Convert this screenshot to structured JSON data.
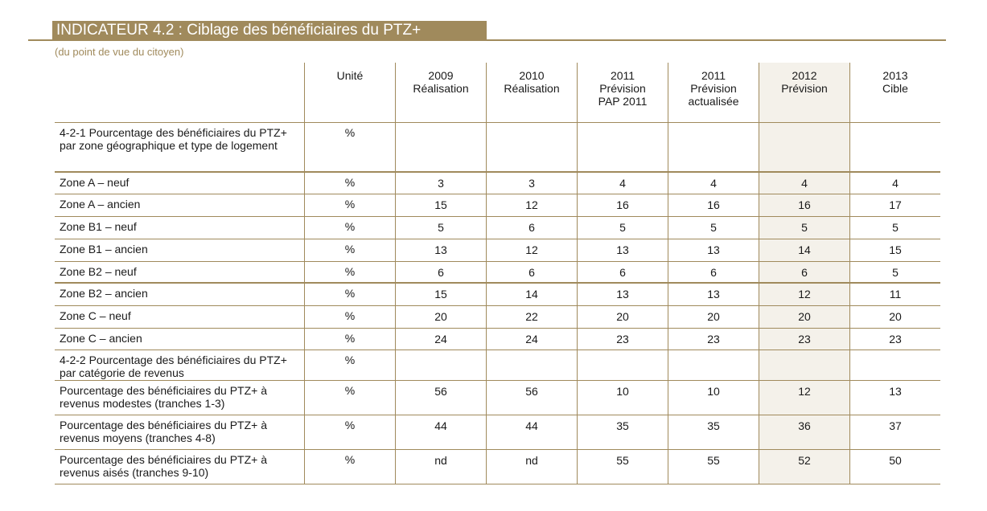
{
  "header": {
    "title": "INDICATEUR 4.2 : Ciblage des bénéficiaires du PTZ+",
    "subtitle": "(du point de vue du citoyen)"
  },
  "table": {
    "columns": [
      "",
      "Unité",
      "2009\nRéalisation",
      "2010\nRéalisation",
      "2011\nPrévision\nPAP 2011",
      "2011\nPrévision\nactualisée",
      "2012\nPrévision",
      "2013\nCible"
    ],
    "rows": [
      {
        "label": "4-2-1 Pourcentage des bénéficiaires du PTZ+ par zone géographique et type de logement",
        "unit": "%",
        "values": [
          "",
          "",
          "",
          "",
          "",
          ""
        ],
        "section": true
      },
      {
        "label": "Zone A – neuf",
        "unit": "%",
        "values": [
          "3",
          "3",
          "4",
          "4",
          "4",
          "4"
        ]
      },
      {
        "label": "Zone A – ancien",
        "unit": "%",
        "values": [
          "15",
          "12",
          "16",
          "16",
          "16",
          "17"
        ]
      },
      {
        "label": "Zone B1 – neuf",
        "unit": "%",
        "values": [
          "5",
          "6",
          "5",
          "5",
          "5",
          "5"
        ]
      },
      {
        "label": "Zone B1 – ancien",
        "unit": "%",
        "values": [
          "13",
          "12",
          "13",
          "13",
          "14",
          "15"
        ]
      },
      {
        "label": "Zone B2 – neuf",
        "unit": "%",
        "values": [
          "6",
          "6",
          "6",
          "6",
          "6",
          "5"
        ]
      },
      {
        "label": "Zone B2 – ancien",
        "unit": "%",
        "values": [
          "15",
          "14",
          "13",
          "13",
          "12",
          "11"
        ]
      },
      {
        "label": "Zone C – neuf",
        "unit": "%",
        "values": [
          "20",
          "22",
          "20",
          "20",
          "20",
          "20"
        ]
      },
      {
        "label": "Zone C – ancien",
        "unit": "%",
        "values": [
          "24",
          "24",
          "23",
          "23",
          "23",
          "23"
        ]
      },
      {
        "label": "4-2-2 Pourcentage des bénéficiaires du PTZ+ par catégorie de revenus",
        "unit": "%",
        "values": [
          "",
          "",
          "",
          "",
          "",
          ""
        ],
        "section": true
      },
      {
        "label": "Pourcentage des bénéficiaires du PTZ+ à revenus modestes (tranches 1-3)",
        "unit": "%",
        "values": [
          "56",
          "56",
          "10",
          "10",
          "12",
          "13"
        ]
      },
      {
        "label": "Pourcentage des bénéficiaires du PTZ+ à revenus moyens (tranches 4-8)",
        "unit": "%",
        "values": [
          "44",
          "44",
          "35",
          "35",
          "36",
          "37"
        ]
      },
      {
        "label": "Pourcentage des bénéficiaires du PTZ+ à revenus aisés (tranches 9-10)",
        "unit": "%",
        "values": [
          "nd",
          "nd",
          "55",
          "55",
          "52",
          "50"
        ]
      }
    ]
  }
}
